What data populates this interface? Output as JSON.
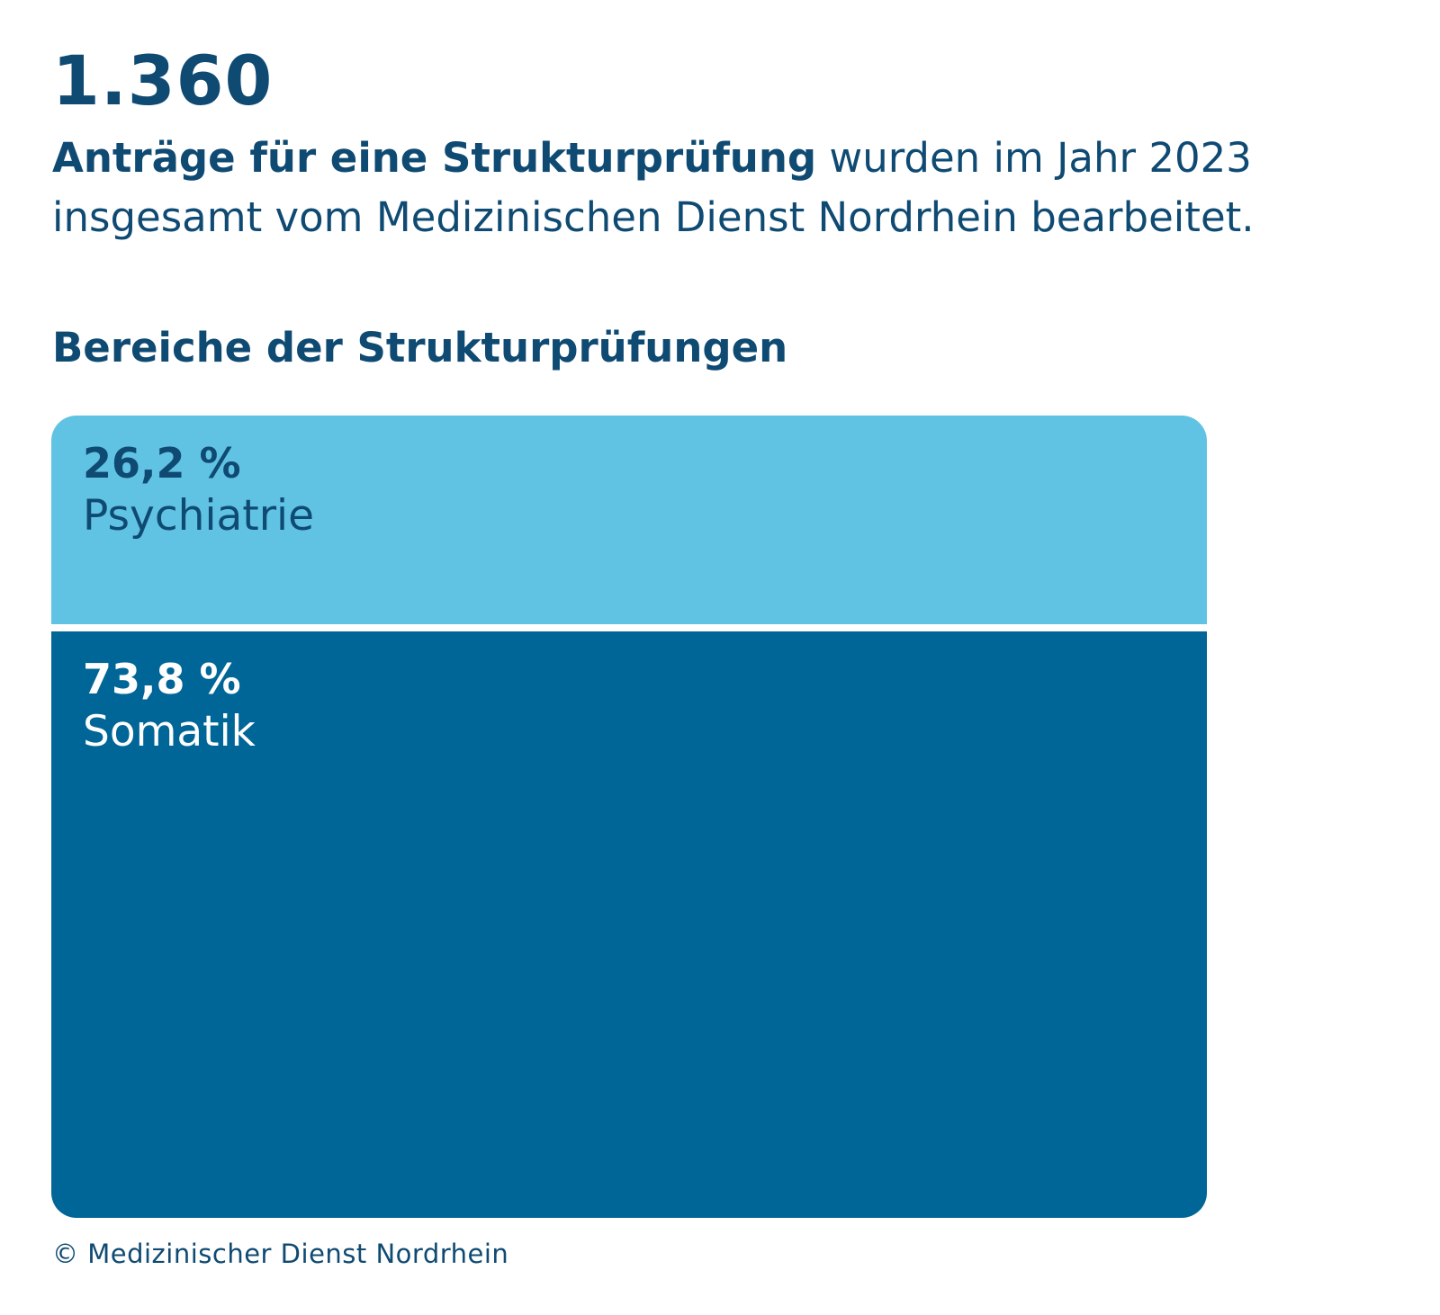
{
  "headline": {
    "number": "1.360",
    "text_bold": "Anträge für eine Strukturprüfung",
    "text_rest_line1": " wurden im Jahr 2023",
    "text_line2": "insgesamt vom Medizinischen Dienst Nordrhein bearbeitet."
  },
  "colors": {
    "text": "#0f4a73",
    "psychiatrie": "#61c3e3",
    "somatik": "#006697",
    "divider": "#ffffff"
  },
  "chart_data": {
    "type": "bar",
    "subtype": "100% stacked bar",
    "title": "Bereiche der Strukturprüfungen",
    "series": [
      {
        "name": "Psychiatrie",
        "value": 26.2,
        "label": "26,2 %",
        "color": "#61c3e3"
      },
      {
        "name": "Somatik",
        "value": 73.8,
        "label": "73,8  %",
        "color": "#006697"
      }
    ]
  },
  "credit": "© Medizinischer Dienst Nordrhein"
}
